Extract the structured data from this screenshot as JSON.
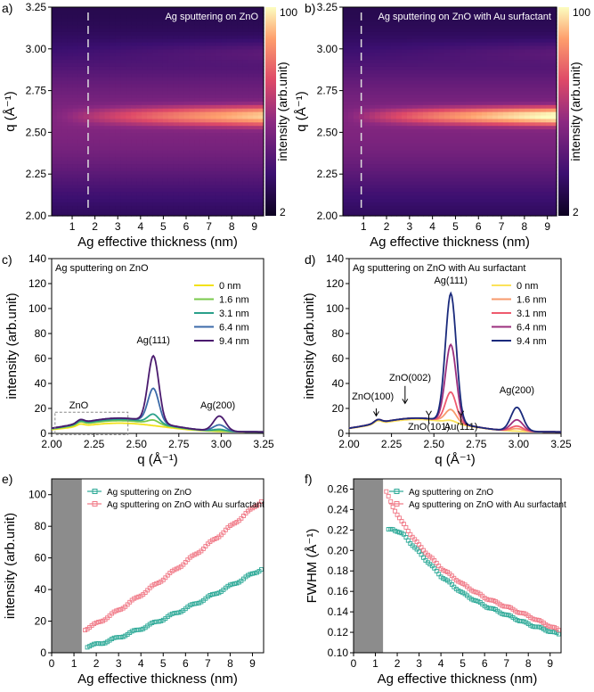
{
  "chart_data": [
    {
      "panel": "a)",
      "type": "heatmap",
      "title": "Ag sputtering on ZnO",
      "xlabel": "Ag effective thickness (nm)",
      "ylabel": "q (Å⁻¹)",
      "xlim": [
        0.1,
        9.4
      ],
      "ylim": [
        2.0,
        3.25
      ],
      "xticks": [
        "1",
        "2",
        "3",
        "4",
        "5",
        "6",
        "7",
        "8",
        "9"
      ],
      "yticks": [
        "2.00",
        "2.25",
        "2.50",
        "2.75",
        "3.00",
        "3.25"
      ],
      "colorbar": {
        "label": "intensity (arb.unit)",
        "min": "2",
        "max": "100",
        "scale": "log"
      },
      "marker_line_x": 1.7,
      "peak": {
        "q": 2.6,
        "width": 0.045,
        "max_intensity": 66
      }
    },
    {
      "panel": "b)",
      "type": "heatmap",
      "title": "Ag sputtering on ZnO with Au surfactant",
      "xlabel": "Ag effective thickness (nm)",
      "ylabel": "q (Å⁻¹)",
      "xlim": [
        0.1,
        9.4
      ],
      "ylim": [
        2.0,
        3.25
      ],
      "xticks": [
        "1",
        "2",
        "3",
        "4",
        "5",
        "6",
        "7",
        "8",
        "9"
      ],
      "yticks": [
        "2.00",
        "2.25",
        "2.50",
        "2.75",
        "3.00",
        "3.25"
      ],
      "colorbar": {
        "label": "intensity (arb.unit)",
        "min": "2",
        "max": "100",
        "scale": "log"
      },
      "marker_line_x": 0.9,
      "peak": {
        "q": 2.6,
        "width": 0.04,
        "max_intensity": 100
      }
    },
    {
      "panel": "c)",
      "type": "line",
      "title": "Ag sputtering on ZnO",
      "xlabel": "q (Å⁻¹)",
      "ylabel": "intensity (arb.unit)",
      "xlim": [
        2.0,
        3.25
      ],
      "ylim": [
        0,
        140
      ],
      "xticks": [
        "2.00",
        "2.25",
        "2.50",
        "2.75",
        "3.00",
        "3.25"
      ],
      "yticks": [
        "0",
        "20",
        "40",
        "60",
        "80",
        "100",
        "120",
        "140"
      ],
      "annotations": [
        {
          "text": "Ag(111)",
          "x": 2.6,
          "y": 72
        },
        {
          "text": "Ag(200)",
          "x": 2.98,
          "y": 20
        },
        {
          "text": "ZnO",
          "x": 2.16,
          "y": 20
        }
      ],
      "series": [
        {
          "name": "0 nm",
          "color": "#f2e11a",
          "base": 7,
          "peak111": 0,
          "peak200": 0
        },
        {
          "name": "1.6 nm",
          "color": "#79c94b",
          "base": 9,
          "peak111": 3,
          "peak200": 0.5
        },
        {
          "name": "3.1 nm",
          "color": "#2aa08a",
          "base": 10,
          "peak111": 7,
          "peak200": 1.5
        },
        {
          "name": "6.4 nm",
          "color": "#3b6aa8",
          "base": 11,
          "peak111": 27,
          "peak200": 5
        },
        {
          "name": "9.4 nm",
          "color": "#4a1a6e",
          "base": 11,
          "peak111": 53,
          "peak200": 12
        }
      ]
    },
    {
      "panel": "d)",
      "type": "line",
      "title": "Ag sputtering on ZnO with Au surfactant",
      "xlabel": "q (Å⁻¹)",
      "ylabel": "intensity (arb.unit)",
      "xlim": [
        2.0,
        3.25
      ],
      "ylim": [
        0,
        140
      ],
      "xticks": [
        "2.00",
        "2.25",
        "2.50",
        "2.75",
        "3.00",
        "3.25"
      ],
      "yticks": [
        "0",
        "20",
        "40",
        "60",
        "80",
        "100",
        "120",
        "140"
      ],
      "annotations": [
        {
          "text": "Ag(111)",
          "x": 2.6,
          "y": 120
        },
        {
          "text": "Ag(200)",
          "x": 2.99,
          "y": 32
        },
        {
          "text": "ZnO(100)",
          "x": 2.14,
          "y": 27
        },
        {
          "text": "ZnO(002)",
          "x": 2.36,
          "y": 42
        },
        {
          "text": "ZnO(101)",
          "x": 2.47,
          "y": 3
        },
        {
          "text": "Au(111)",
          "x": 2.66,
          "y": 3
        }
      ],
      "series": [
        {
          "name": "0 nm",
          "color": "#fbe25a",
          "base": 10,
          "peak111": 2,
          "peak200": 0
        },
        {
          "name": "1.6 nm",
          "color": "#f79a6c",
          "base": 11,
          "peak111": 10,
          "peak200": 2
        },
        {
          "name": "3.1 nm",
          "color": "#ef5a6e",
          "base": 11,
          "peak111": 24,
          "peak200": 4
        },
        {
          "name": "6.4 nm",
          "color": "#9b2f7e",
          "base": 11,
          "peak111": 62,
          "peak200": 9
        },
        {
          "name": "9.4 nm",
          "color": "#1a2a7c",
          "base": 11,
          "peak111": 103,
          "peak200": 19
        }
      ]
    },
    {
      "panel": "e)",
      "type": "scatter",
      "xlabel": "Ag effective thickness (nm)",
      "ylabel": "intensity (arb.unit)",
      "xlim": [
        0,
        9.5
      ],
      "ylim": [
        0,
        110
      ],
      "xticks": [
        "0",
        "1",
        "2",
        "3",
        "4",
        "5",
        "6",
        "7",
        "8",
        "9"
      ],
      "yticks": [
        "0",
        "20",
        "40",
        "60",
        "80",
        "100"
      ],
      "shaded_region_x": [
        0,
        1.35
      ],
      "series": [
        {
          "name": "Ag sputtering on ZnO",
          "color": "#2ba896",
          "x_start": 1.6,
          "x_end": 9.4,
          "y_start": 4,
          "y_end": 53,
          "curvature": 1.25
        },
        {
          "name": "Ag sputtering on ZnO with Au surfactant",
          "color": "#f07886",
          "x_start": 1.5,
          "x_end": 9.4,
          "y_start": 15,
          "y_end": 96,
          "curvature": 1.15
        }
      ]
    },
    {
      "panel": "f)",
      "type": "scatter",
      "xlabel": "Ag effective thickness (nm)",
      "ylabel": "FWHM (Å⁻¹)",
      "xlim": [
        0,
        9.5
      ],
      "ylim": [
        0.1,
        0.27
      ],
      "xticks": [
        "0",
        "1",
        "2",
        "3",
        "4",
        "5",
        "6",
        "7",
        "8",
        "9"
      ],
      "yticks": [
        "0.10",
        "0.12",
        "0.14",
        "0.16",
        "0.18",
        "0.20",
        "0.22",
        "0.24",
        "0.26"
      ],
      "shaded_region_x": [
        0,
        1.35
      ],
      "series": [
        {
          "name": "Ag sputtering on ZnO",
          "color": "#2ba896",
          "points": [
            [
              1.6,
              0.22
            ],
            [
              1.8,
              0.221
            ],
            [
              2.0,
              0.219
            ],
            [
              2.3,
              0.215
            ],
            [
              3.0,
              0.198
            ],
            [
              4.0,
              0.175
            ],
            [
              5.0,
              0.158
            ],
            [
              6.0,
              0.146
            ],
            [
              7.0,
              0.137
            ],
            [
              8.0,
              0.128
            ],
            [
              9.0,
              0.121
            ],
            [
              9.4,
              0.118
            ]
          ]
        },
        {
          "name": "Ag sputtering on ZnO with Au surfactant",
          "color": "#f07886",
          "points": [
            [
              1.5,
              0.257
            ],
            [
              1.8,
              0.243
            ],
            [
              2.2,
              0.228
            ],
            [
              3.0,
              0.205
            ],
            [
              4.0,
              0.183
            ],
            [
              5.0,
              0.167
            ],
            [
              6.0,
              0.154
            ],
            [
              7.0,
              0.145
            ],
            [
              8.0,
              0.136
            ],
            [
              9.0,
              0.126
            ],
            [
              9.4,
              0.122
            ]
          ]
        }
      ]
    }
  ]
}
